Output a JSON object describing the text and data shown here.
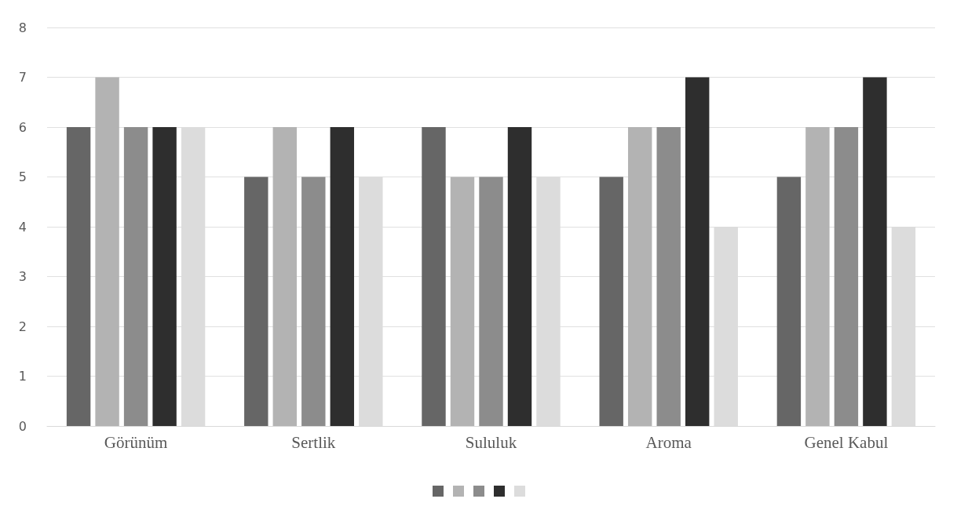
{
  "chart_data": {
    "type": "bar",
    "categories": [
      "Görünüm",
      "Sertlik",
      "Sululuk",
      "Aroma",
      "Genel Kabul"
    ],
    "series": [
      {
        "color": "#666666",
        "values": [
          6,
          5,
          6,
          5,
          5
        ]
      },
      {
        "color": "#b3b3b3",
        "values": [
          7,
          6,
          5,
          6,
          6
        ]
      },
      {
        "color": "#8c8c8c",
        "values": [
          6,
          5,
          5,
          6,
          6
        ]
      },
      {
        "color": "#2e2e2e",
        "values": [
          6,
          6,
          6,
          7,
          7
        ]
      },
      {
        "color": "#dcdcdc",
        "values": [
          6,
          5,
          5,
          4,
          4
        ]
      }
    ],
    "ylim": [
      0,
      8
    ],
    "yticks": [
      0,
      1,
      2,
      3,
      4,
      5,
      6,
      7,
      8
    ],
    "grid": "y"
  }
}
